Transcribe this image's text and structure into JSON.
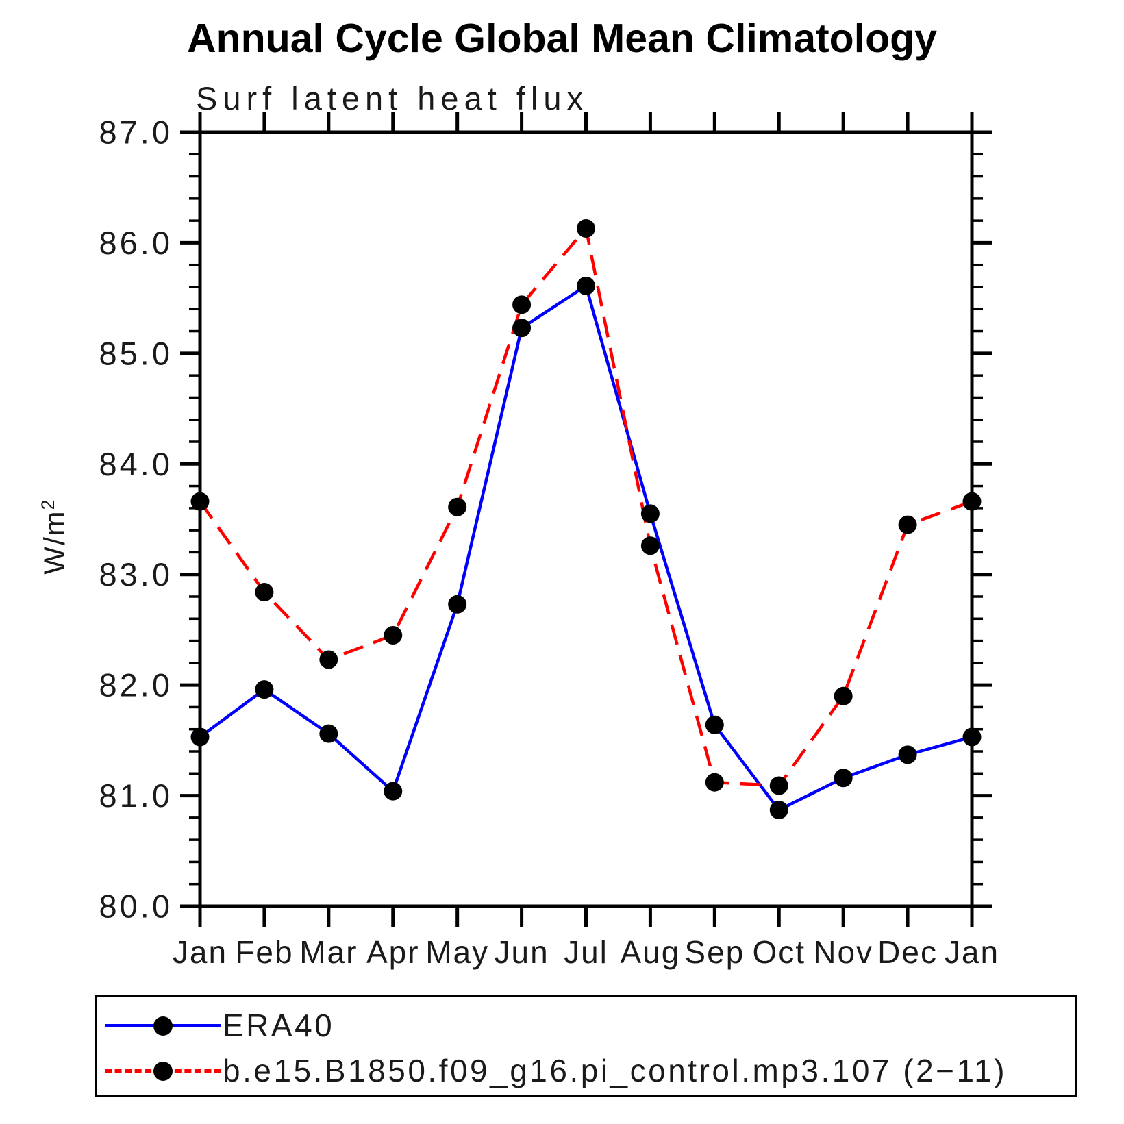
{
  "chart_data": {
    "type": "line",
    "title": "Annual Cycle Global Mean Climatology",
    "subtitle": "Surf latent heat flux",
    "ylabel_base": "W/m",
    "ylabel_exp": "2",
    "categories": [
      "Jan",
      "Feb",
      "Mar",
      "Apr",
      "May",
      "Jun",
      "Jul",
      "Aug",
      "Sep",
      "Oct",
      "Nov",
      "Dec",
      "Jan"
    ],
    "ylim": [
      80.0,
      87.0
    ],
    "ytick_step": 1.0,
    "ytick_minor_step": 0.2,
    "yticks": [
      {
        "value": 80.0,
        "label": "80.0"
      },
      {
        "value": 81.0,
        "label": "81.0"
      },
      {
        "value": 82.0,
        "label": "82.0"
      },
      {
        "value": 83.0,
        "label": "83.0"
      },
      {
        "value": 84.0,
        "label": "84.0"
      },
      {
        "value": 85.0,
        "label": "85.0"
      },
      {
        "value": 86.0,
        "label": "86.0"
      },
      {
        "value": 87.0,
        "label": "87.0"
      }
    ],
    "grid": false,
    "legend_position": "bottom",
    "axis_color": "#000000",
    "marker_color": "#000000",
    "series": [
      {
        "name": "ERA40",
        "color": "#0000ff",
        "style": "solid",
        "marker": "circle",
        "values": [
          81.53,
          81.96,
          81.56,
          81.04,
          82.73,
          85.23,
          85.61,
          83.55,
          81.64,
          80.87,
          81.16,
          81.37,
          81.53
        ]
      },
      {
        "name": "b.e15.B1850.f09_g16.pi_control.mp3.107 (2−11)",
        "color": "#ff0000",
        "style": "dashed",
        "marker": "circle",
        "values": [
          83.66,
          82.84,
          82.23,
          82.45,
          83.61,
          85.44,
          86.13,
          83.26,
          81.12,
          81.09,
          81.9,
          83.45,
          83.66
        ]
      }
    ]
  }
}
